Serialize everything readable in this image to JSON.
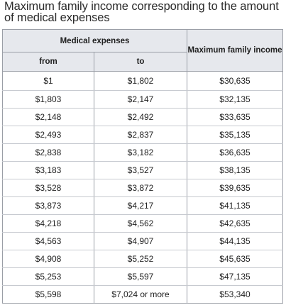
{
  "title": "Maximum family income corresponding to the amount of medical expenses",
  "headers": {
    "medical_expenses": "Medical expenses",
    "from": "from",
    "to": "to",
    "max_income": "Maximum family income"
  },
  "rows": [
    {
      "from": "$1",
      "to": "$1,802",
      "max": "$30,635"
    },
    {
      "from": "$1,803",
      "to": "$2,147",
      "max": "$32,135"
    },
    {
      "from": "$2,148",
      "to": "$2,492",
      "max": "$33,635"
    },
    {
      "from": "$2,493",
      "to": "$2,837",
      "max": "$35,135"
    },
    {
      "from": "$2,838",
      "to": "$3,182",
      "max": "$36,635"
    },
    {
      "from": "$3,183",
      "to": "$3,527",
      "max": "$38,135"
    },
    {
      "from": "$3,528",
      "to": "$3,872",
      "max": "$39,635"
    },
    {
      "from": "$3,873",
      "to": "$4,217",
      "max": "$41,135"
    },
    {
      "from": "$4,218",
      "to": "$4,562",
      "max": "$42,635"
    },
    {
      "from": "$4,563",
      "to": "$4,907",
      "max": "$44,135"
    },
    {
      "from": "$4,908",
      "to": "$5,252",
      "max": "$45,635"
    },
    {
      "from": "$5,253",
      "to": "$5,597",
      "max": "$47,135"
    },
    {
      "from": "$5,598",
      "to": "$7,024 or more",
      "max": "$53,340"
    }
  ],
  "colors": {
    "header_bg": "#e6e8ed",
    "border": "#9a9ea6",
    "row_divider": "#c7cad0",
    "text": "#222222"
  }
}
